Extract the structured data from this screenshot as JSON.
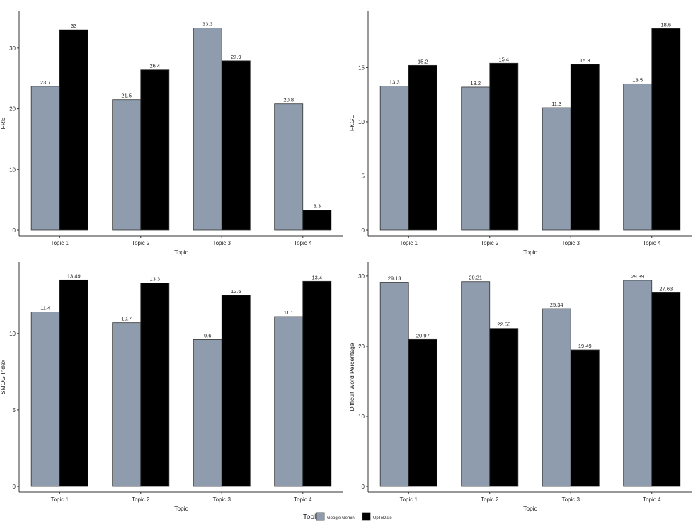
{
  "colors": {
    "gemini": "#8e9cad",
    "uptodate": "#000000",
    "axis": "#333333",
    "text": "#222222",
    "background": "#ffffff"
  },
  "legend": {
    "title": "Tool",
    "entries": [
      "Google Gemini",
      "UpToDate"
    ],
    "position": "bottom-center"
  },
  "chart_data": [
    {
      "id": "fre",
      "type": "bar",
      "title": "",
      "xlabel": "Topic",
      "ylabel": "FRE",
      "categories": [
        "Topic 1",
        "Topic 2",
        "Topic 3",
        "Topic 4"
      ],
      "series": [
        {
          "name": "Google Gemini",
          "values": [
            23.7,
            21.5,
            33.3,
            20.8
          ],
          "labels": [
            "23.7",
            "21.5",
            "33.3",
            "20.8"
          ]
        },
        {
          "name": "UpToDate",
          "values": [
            33,
            26.4,
            27.9,
            3.3
          ],
          "labels": [
            "33",
            "26.4",
            "27.9",
            "3.3"
          ]
        }
      ],
      "ylim": [
        0,
        35
      ],
      "yticks": [
        0,
        10,
        20,
        30
      ],
      "grid": false
    },
    {
      "id": "fkgl",
      "type": "bar",
      "title": "",
      "xlabel": "Topic",
      "ylabel": "FKGL",
      "categories": [
        "Topic 1",
        "Topic 2",
        "Topic 3",
        "Topic 4"
      ],
      "series": [
        {
          "name": "Google Gemini",
          "values": [
            13.3,
            13.2,
            11.3,
            13.5
          ],
          "labels": [
            "13.3",
            "13.2",
            "11.3",
            "13.5"
          ]
        },
        {
          "name": "UpToDate",
          "values": [
            15.2,
            15.4,
            15.3,
            18.6
          ],
          "labels": [
            "15.2",
            "15.4",
            "15.3",
            "18.6"
          ]
        }
      ],
      "ylim": [
        0,
        19.6
      ],
      "yticks": [
        0,
        5,
        10,
        15
      ],
      "grid": false
    },
    {
      "id": "smog",
      "type": "bar",
      "title": "",
      "xlabel": "Topic",
      "ylabel": "SMOG Index",
      "categories": [
        "Topic 1",
        "Topic 2",
        "Topic 3",
        "Topic 4"
      ],
      "series": [
        {
          "name": "Google Gemini",
          "values": [
            11.4,
            10.7,
            9.6,
            11.1
          ],
          "labels": [
            "11.4",
            "10.7",
            "9.6",
            "11.1"
          ]
        },
        {
          "name": "UpToDate",
          "values": [
            13.49,
            13.3,
            12.5,
            13.4
          ],
          "labels": [
            "13.49",
            "13.3",
            "12.5",
            "13.4"
          ]
        }
      ],
      "ylim": [
        0,
        14.2
      ],
      "yticks": [
        0,
        5,
        10
      ],
      "grid": false
    },
    {
      "id": "difficult-words",
      "type": "bar",
      "title": "",
      "xlabel": "Topic",
      "ylabel": "Difficult Word Percentage",
      "categories": [
        "Topic 1",
        "Topic 2",
        "Topic 3",
        "Topic 4"
      ],
      "series": [
        {
          "name": "Google Gemini",
          "values": [
            29.13,
            29.21,
            25.34,
            29.39
          ],
          "labels": [
            "29.13",
            "29.21",
            "25.34",
            "29.39"
          ]
        },
        {
          "name": "UpToDate",
          "values": [
            20.97,
            22.55,
            19.49,
            27.63
          ],
          "labels": [
            "20.97",
            "22.55",
            "19.49",
            "27.63"
          ]
        }
      ],
      "ylim": [
        0,
        31
      ],
      "yticks": [
        0,
        10,
        20,
        30
      ],
      "grid": false
    }
  ]
}
